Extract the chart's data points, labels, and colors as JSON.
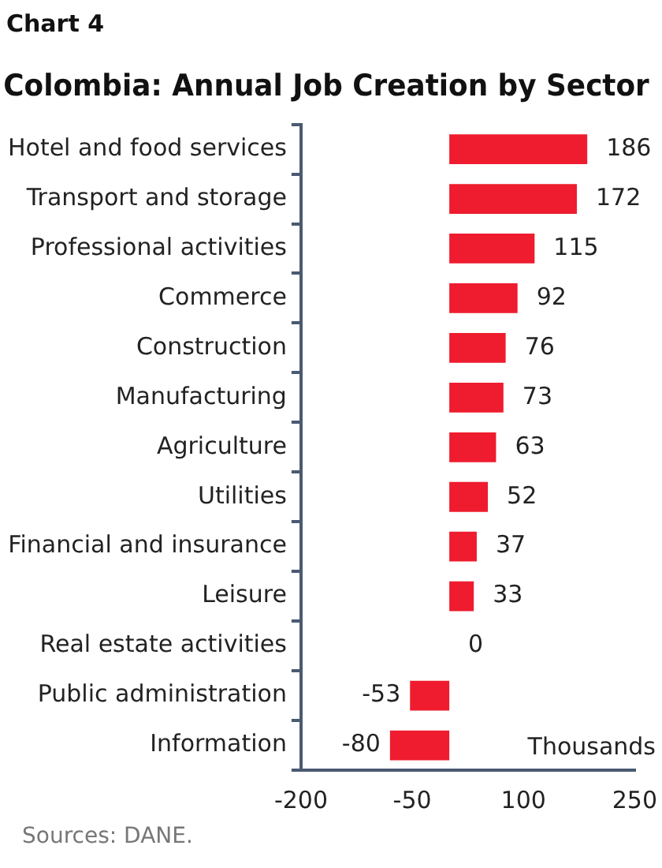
{
  "chart_data": {
    "type": "bar",
    "orientation": "horizontal",
    "title": "Colombia: Annual Job Creation by Sector",
    "categories": [
      "Hotel and food services",
      "Transport and storage",
      "Professional activities",
      "Commerce",
      "Construction",
      "Manufacturing",
      "Agriculture",
      "Utilities",
      "Financial and insurance",
      "Leisure",
      "Real estate activities",
      "Public administration",
      "Information"
    ],
    "values": [
      186,
      172,
      115,
      92,
      76,
      73,
      63,
      52,
      37,
      33,
      0,
      -53,
      -80
    ],
    "color": "#ee1c2e",
    "xlim": [
      -200,
      250
    ],
    "xticks": [
      -200,
      -50,
      100,
      250
    ],
    "grid": false,
    "legend": false,
    "data_labels": true,
    "annotations": [
      "Chart 4",
      "Thousands",
      "Sources: DANE."
    ]
  }
}
